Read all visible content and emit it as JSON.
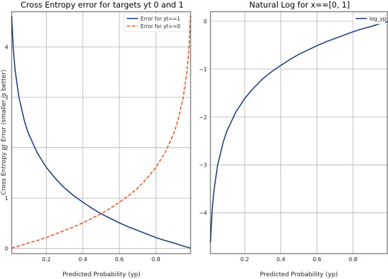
{
  "chart_data": [
    {
      "type": "line",
      "title": "Cross Entropy error for targets yt 0 and 1",
      "xlabel": "Predicted Probability (yp)",
      "ylabel": "Cross Entropy or Error (smaller is better)",
      "xlim": [
        0.01,
        0.99
      ],
      "ylim": [
        -0.1,
        4.7
      ],
      "xticks": [
        0.2,
        0.4,
        0.6,
        0.8
      ],
      "xtick_labels": [
        "0.2",
        "0.4",
        "0.6",
        "0.8"
      ],
      "yticks": [
        0,
        1,
        2,
        3,
        4
      ],
      "ytick_labels": [
        "0",
        "1",
        "2",
        "3",
        "4"
      ],
      "grid": true,
      "legend_position": "top-right",
      "series": [
        {
          "name": "Error for yt==1",
          "color": "#1f3d7a",
          "style": "solid",
          "x": [
            0.01,
            0.02,
            0.03,
            0.05,
            0.08,
            0.1,
            0.15,
            0.2,
            0.25,
            0.3,
            0.35,
            0.4,
            0.45,
            0.5,
            0.55,
            0.6,
            0.65,
            0.7,
            0.75,
            0.8,
            0.85,
            0.9,
            0.95,
            0.99
          ],
          "y": [
            4.61,
            3.91,
            3.51,
            3.0,
            2.53,
            2.3,
            1.9,
            1.61,
            1.39,
            1.2,
            1.05,
            0.92,
            0.8,
            0.69,
            0.6,
            0.51,
            0.43,
            0.36,
            0.29,
            0.22,
            0.16,
            0.11,
            0.05,
            0.01
          ]
        },
        {
          "name": "Error for yt==0",
          "color": "#e8542a",
          "style": "dashed",
          "x": [
            0.01,
            0.05,
            0.1,
            0.15,
            0.2,
            0.25,
            0.3,
            0.35,
            0.4,
            0.45,
            0.5,
            0.55,
            0.6,
            0.65,
            0.7,
            0.75,
            0.8,
            0.85,
            0.9,
            0.92,
            0.95,
            0.97,
            0.98,
            0.99
          ],
          "y": [
            0.01,
            0.05,
            0.11,
            0.16,
            0.22,
            0.29,
            0.36,
            0.43,
            0.51,
            0.6,
            0.69,
            0.8,
            0.92,
            1.05,
            1.2,
            1.39,
            1.61,
            1.9,
            2.3,
            2.53,
            3.0,
            3.51,
            3.91,
            4.61
          ]
        }
      ]
    },
    {
      "type": "line",
      "title": "Natural Log for x==[0, 1]",
      "xlabel": "Predicted Probability (yp)",
      "ylabel": "",
      "xlim": [
        0.01,
        0.99
      ],
      "ylim": [
        -4.85,
        0.2
      ],
      "xticks": [
        0.2,
        0.4,
        0.6,
        0.8
      ],
      "xtick_labels": [
        "0.2",
        "0.4",
        "0.6",
        "0.8"
      ],
      "yticks": [
        0,
        -1,
        -2,
        -3,
        -4
      ],
      "ytick_labels": [
        "0",
        "−1",
        "−2",
        "−3",
        "−4"
      ],
      "grid": true,
      "legend_position": "top-right",
      "series": [
        {
          "name": "log_yp",
          "color": "#1f3d7a",
          "style": "solid",
          "x": [
            0.01,
            0.02,
            0.03,
            0.05,
            0.08,
            0.1,
            0.15,
            0.2,
            0.25,
            0.3,
            0.35,
            0.4,
            0.45,
            0.5,
            0.55,
            0.6,
            0.65,
            0.7,
            0.75,
            0.8,
            0.85,
            0.9,
            0.95,
            0.99
          ],
          "y": [
            -4.61,
            -3.91,
            -3.51,
            -3.0,
            -2.53,
            -2.3,
            -1.9,
            -1.61,
            -1.39,
            -1.2,
            -1.05,
            -0.92,
            -0.8,
            -0.69,
            -0.6,
            -0.51,
            -0.43,
            -0.36,
            -0.29,
            -0.22,
            -0.16,
            -0.11,
            -0.05,
            -0.01
          ]
        }
      ]
    }
  ]
}
